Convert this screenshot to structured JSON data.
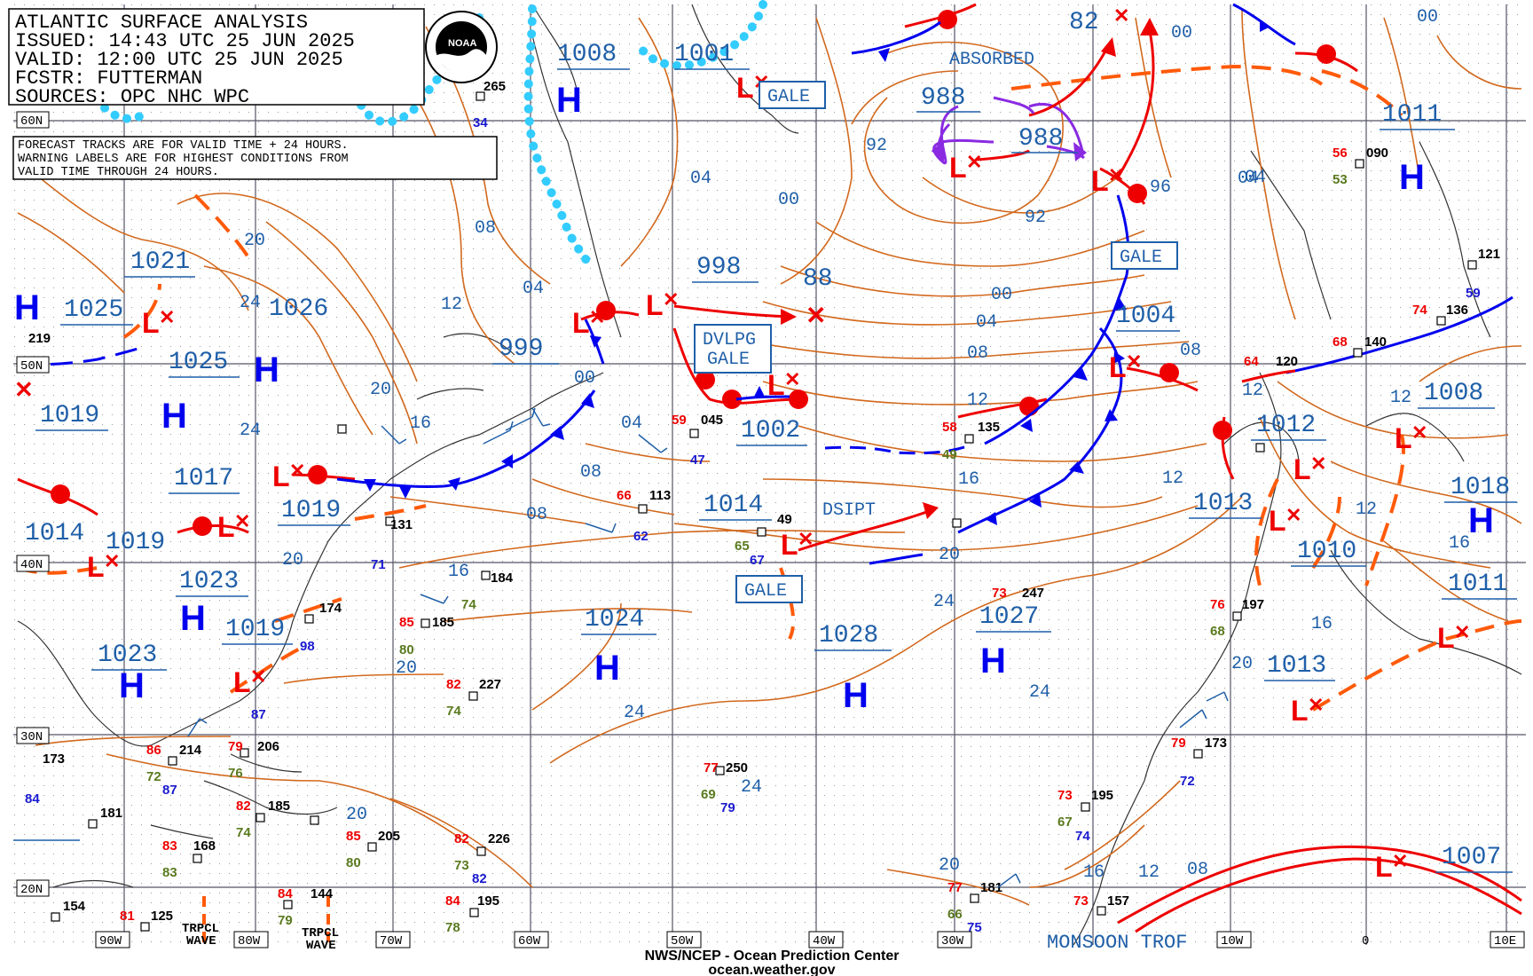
{
  "header": {
    "title": "ATLANTIC SURFACE ANALYSIS",
    "issued": "ISSUED: 14:43 UTC 25 JUN 2025",
    "valid": "VALID:  12:00 UTC 25 JUN 2025",
    "forecaster": "FCSTR:  FUTTERMAN",
    "sources": "SOURCES: OPC NHC WPC"
  },
  "logo": {
    "text": "NOAA"
  },
  "note": {
    "line1": "FORECAST TRACKS ARE FOR VALID TIME + 24 HOURS.",
    "line2": "WARNING LABELS ARE FOR HIGHEST CONDITIONS FROM",
    "line3": "VALID TIME THROUGH 24 HOURS."
  },
  "footer": {
    "line1": "NWS/NCEP - Ocean Prediction Center",
    "line2": "ocean.weather.gov"
  },
  "colors": {
    "isobar": "#d2691e",
    "pressure_text": "#1f5fa8",
    "low": "#ff0000",
    "high": "#0000ee",
    "ice": "#33ccff",
    "occluded": "#8a2be2"
  },
  "lat_labels": [
    "60N",
    "50N",
    "40N",
    "30N",
    "20N"
  ],
  "lon_labels": [
    "90W",
    "80W",
    "70W",
    "60W",
    "50W",
    "40W",
    "30W",
    "10W",
    "0",
    "10E"
  ],
  "pressures": [
    "1008",
    "1001",
    "82",
    "988",
    "988",
    "1011",
    "998",
    "88",
    "1004",
    "999",
    "1002",
    "1021",
    "1025",
    "1026",
    "1025",
    "1019",
    "1017",
    "1019",
    "1014",
    "1019",
    "1023",
    "1019",
    "1023",
    "1014",
    "1024",
    "1028",
    "1027",
    "1012",
    "1008",
    "1013",
    "1018",
    "1010",
    "1011",
    "1013",
    "1007"
  ],
  "isobar_labels": [
    "04",
    "00",
    "92",
    "00",
    "92",
    "96",
    "00",
    "04",
    "08",
    "12",
    "16",
    "16",
    "20",
    "24",
    "24",
    "20",
    "08",
    "04",
    "00",
    "04",
    "08",
    "12",
    "16",
    "12",
    "20",
    "24",
    "20",
    "16",
    "20",
    "24",
    "24",
    "20",
    "20",
    "16",
    "12",
    "08",
    "20",
    "24",
    "12",
    "12",
    "12",
    "16",
    "08",
    "04",
    "08",
    "04",
    "00"
  ],
  "tags": {
    "gale1": "GALE",
    "gale2": "GALE",
    "gale3": "GALE",
    "dvlpg1": "DVLPG",
    "dvlpg2": "GALE",
    "absorbed": "ABSORBED",
    "dsipt": "DSIPT",
    "monsoon": "MONSOON TROF",
    "trpcl1a": "TRPCL",
    "trpcl1b": "WAVE",
    "trpcl2a": "TRPCL",
    "trpcl2b": "WAVE"
  },
  "stations": [
    {
      "t": "219",
      "c": "#000"
    },
    {
      "t": "265",
      "c": "#000"
    },
    {
      "t": "34",
      "c": "#1a1ad0"
    },
    {
      "t": "045",
      "c": "#000"
    },
    {
      "t": "59",
      "c": "#e00"
    },
    {
      "t": "47",
      "c": "#1a1ad0"
    },
    {
      "t": "135",
      "c": "#000"
    },
    {
      "t": "58",
      "c": "#e00"
    },
    {
      "t": "49",
      "c": "#5a7a1e"
    },
    {
      "t": "113",
      "c": "#000"
    },
    {
      "t": "66",
      "c": "#e00"
    },
    {
      "t": "62",
      "c": "#1a1ad0"
    },
    {
      "t": "131",
      "c": "#000"
    },
    {
      "t": "71",
      "c": "#1a1ad0"
    },
    {
      "t": "184",
      "c": "#000"
    },
    {
      "t": "74",
      "c": "#5a7a1e"
    },
    {
      "t": "185",
      "c": "#000"
    },
    {
      "t": "85",
      "c": "#e00"
    },
    {
      "t": "80",
      "c": "#5a7a1e"
    },
    {
      "t": "174",
      "c": "#000"
    },
    {
      "t": "227",
      "c": "#000"
    },
    {
      "t": "82",
      "c": "#e00"
    },
    {
      "t": "74",
      "c": "#5a7a1e"
    },
    {
      "t": "090",
      "c": "#000"
    },
    {
      "t": "56",
      "c": "#e00"
    },
    {
      "t": "53",
      "c": "#5a7a1e"
    },
    {
      "t": "121",
      "c": "#000"
    },
    {
      "t": "59",
      "c": "#1a1ad0"
    },
    {
      "t": "136",
      "c": "#000"
    },
    {
      "t": "74",
      "c": "#e00"
    },
    {
      "t": "140",
      "c": "#000"
    },
    {
      "t": "68",
      "c": "#e00"
    },
    {
      "t": "120",
      "c": "#000"
    },
    {
      "t": "64",
      "c": "#e00"
    },
    {
      "t": "197",
      "c": "#000"
    },
    {
      "t": "76",
      "c": "#e00"
    },
    {
      "t": "68",
      "c": "#5a7a1e"
    },
    {
      "t": "247",
      "c": "#000"
    },
    {
      "t": "73",
      "c": "#e00"
    },
    {
      "t": "250",
      "c": "#000"
    },
    {
      "t": "77",
      "c": "#e00"
    },
    {
      "t": "69",
      "c": "#5a7a1e"
    },
    {
      "t": "79",
      "c": "#1a1ad0"
    },
    {
      "t": "173",
      "c": "#000"
    },
    {
      "t": "79",
      "c": "#e00"
    },
    {
      "t": "72",
      "c": "#1a1ad0"
    },
    {
      "t": "195",
      "c": "#000"
    },
    {
      "t": "73",
      "c": "#e00"
    },
    {
      "t": "67",
      "c": "#5a7a1e"
    },
    {
      "t": "74",
      "c": "#1a1ad0"
    },
    {
      "t": "181",
      "c": "#000"
    },
    {
      "t": "77",
      "c": "#e00"
    },
    {
      "t": "66",
      "c": "#5a7a1e"
    },
    {
      "t": "75",
      "c": "#1a1ad0"
    },
    {
      "t": "157",
      "c": "#000"
    },
    {
      "t": "73",
      "c": "#e00"
    },
    {
      "t": "173",
      "c": "#000"
    },
    {
      "t": "84",
      "c": "#1a1ad0"
    },
    {
      "t": "214",
      "c": "#000"
    },
    {
      "t": "86",
      "c": "#e00"
    },
    {
      "t": "72",
      "c": "#5a7a1e"
    },
    {
      "t": "87",
      "c": "#1a1ad0"
    },
    {
      "t": "206",
      "c": "#000"
    },
    {
      "t": "79",
      "c": "#e00"
    },
    {
      "t": "76",
      "c": "#5a7a1e"
    },
    {
      "t": "87",
      "c": "#1a1ad0"
    },
    {
      "t": "181",
      "c": "#000"
    },
    {
      "t": "185",
      "c": "#000"
    },
    {
      "t": "82",
      "c": "#e00"
    },
    {
      "t": "74",
      "c": "#5a7a1e"
    },
    {
      "t": "205",
      "c": "#000"
    },
    {
      "t": "85",
      "c": "#e00"
    },
    {
      "t": "80",
      "c": "#5a7a1e"
    },
    {
      "t": "168",
      "c": "#000"
    },
    {
      "t": "83",
      "c": "#e00"
    },
    {
      "t": "83",
      "c": "#5a7a1e"
    },
    {
      "t": "226",
      "c": "#000"
    },
    {
      "t": "82",
      "c": "#e00"
    },
    {
      "t": "73",
      "c": "#5a7a1e"
    },
    {
      "t": "82",
      "c": "#1a1ad0"
    },
    {
      "t": "154",
      "c": "#000"
    },
    {
      "t": "125",
      "c": "#000"
    },
    {
      "t": "81",
      "c": "#e00"
    },
    {
      "t": "144",
      "c": "#000"
    },
    {
      "t": "84",
      "c": "#e00"
    },
    {
      "t": "79",
      "c": "#5a7a1e"
    },
    {
      "t": "195",
      "c": "#000"
    },
    {
      "t": "84",
      "c": "#e00"
    },
    {
      "t": "78",
      "c": "#5a7a1e"
    },
    {
      "t": "49",
      "c": "#000"
    },
    {
      "t": "65",
      "c": "#5a7a1e"
    },
    {
      "t": "67",
      "c": "#1a1ad0"
    },
    {
      "t": "98",
      "c": "#1a1ad0"
    }
  ]
}
